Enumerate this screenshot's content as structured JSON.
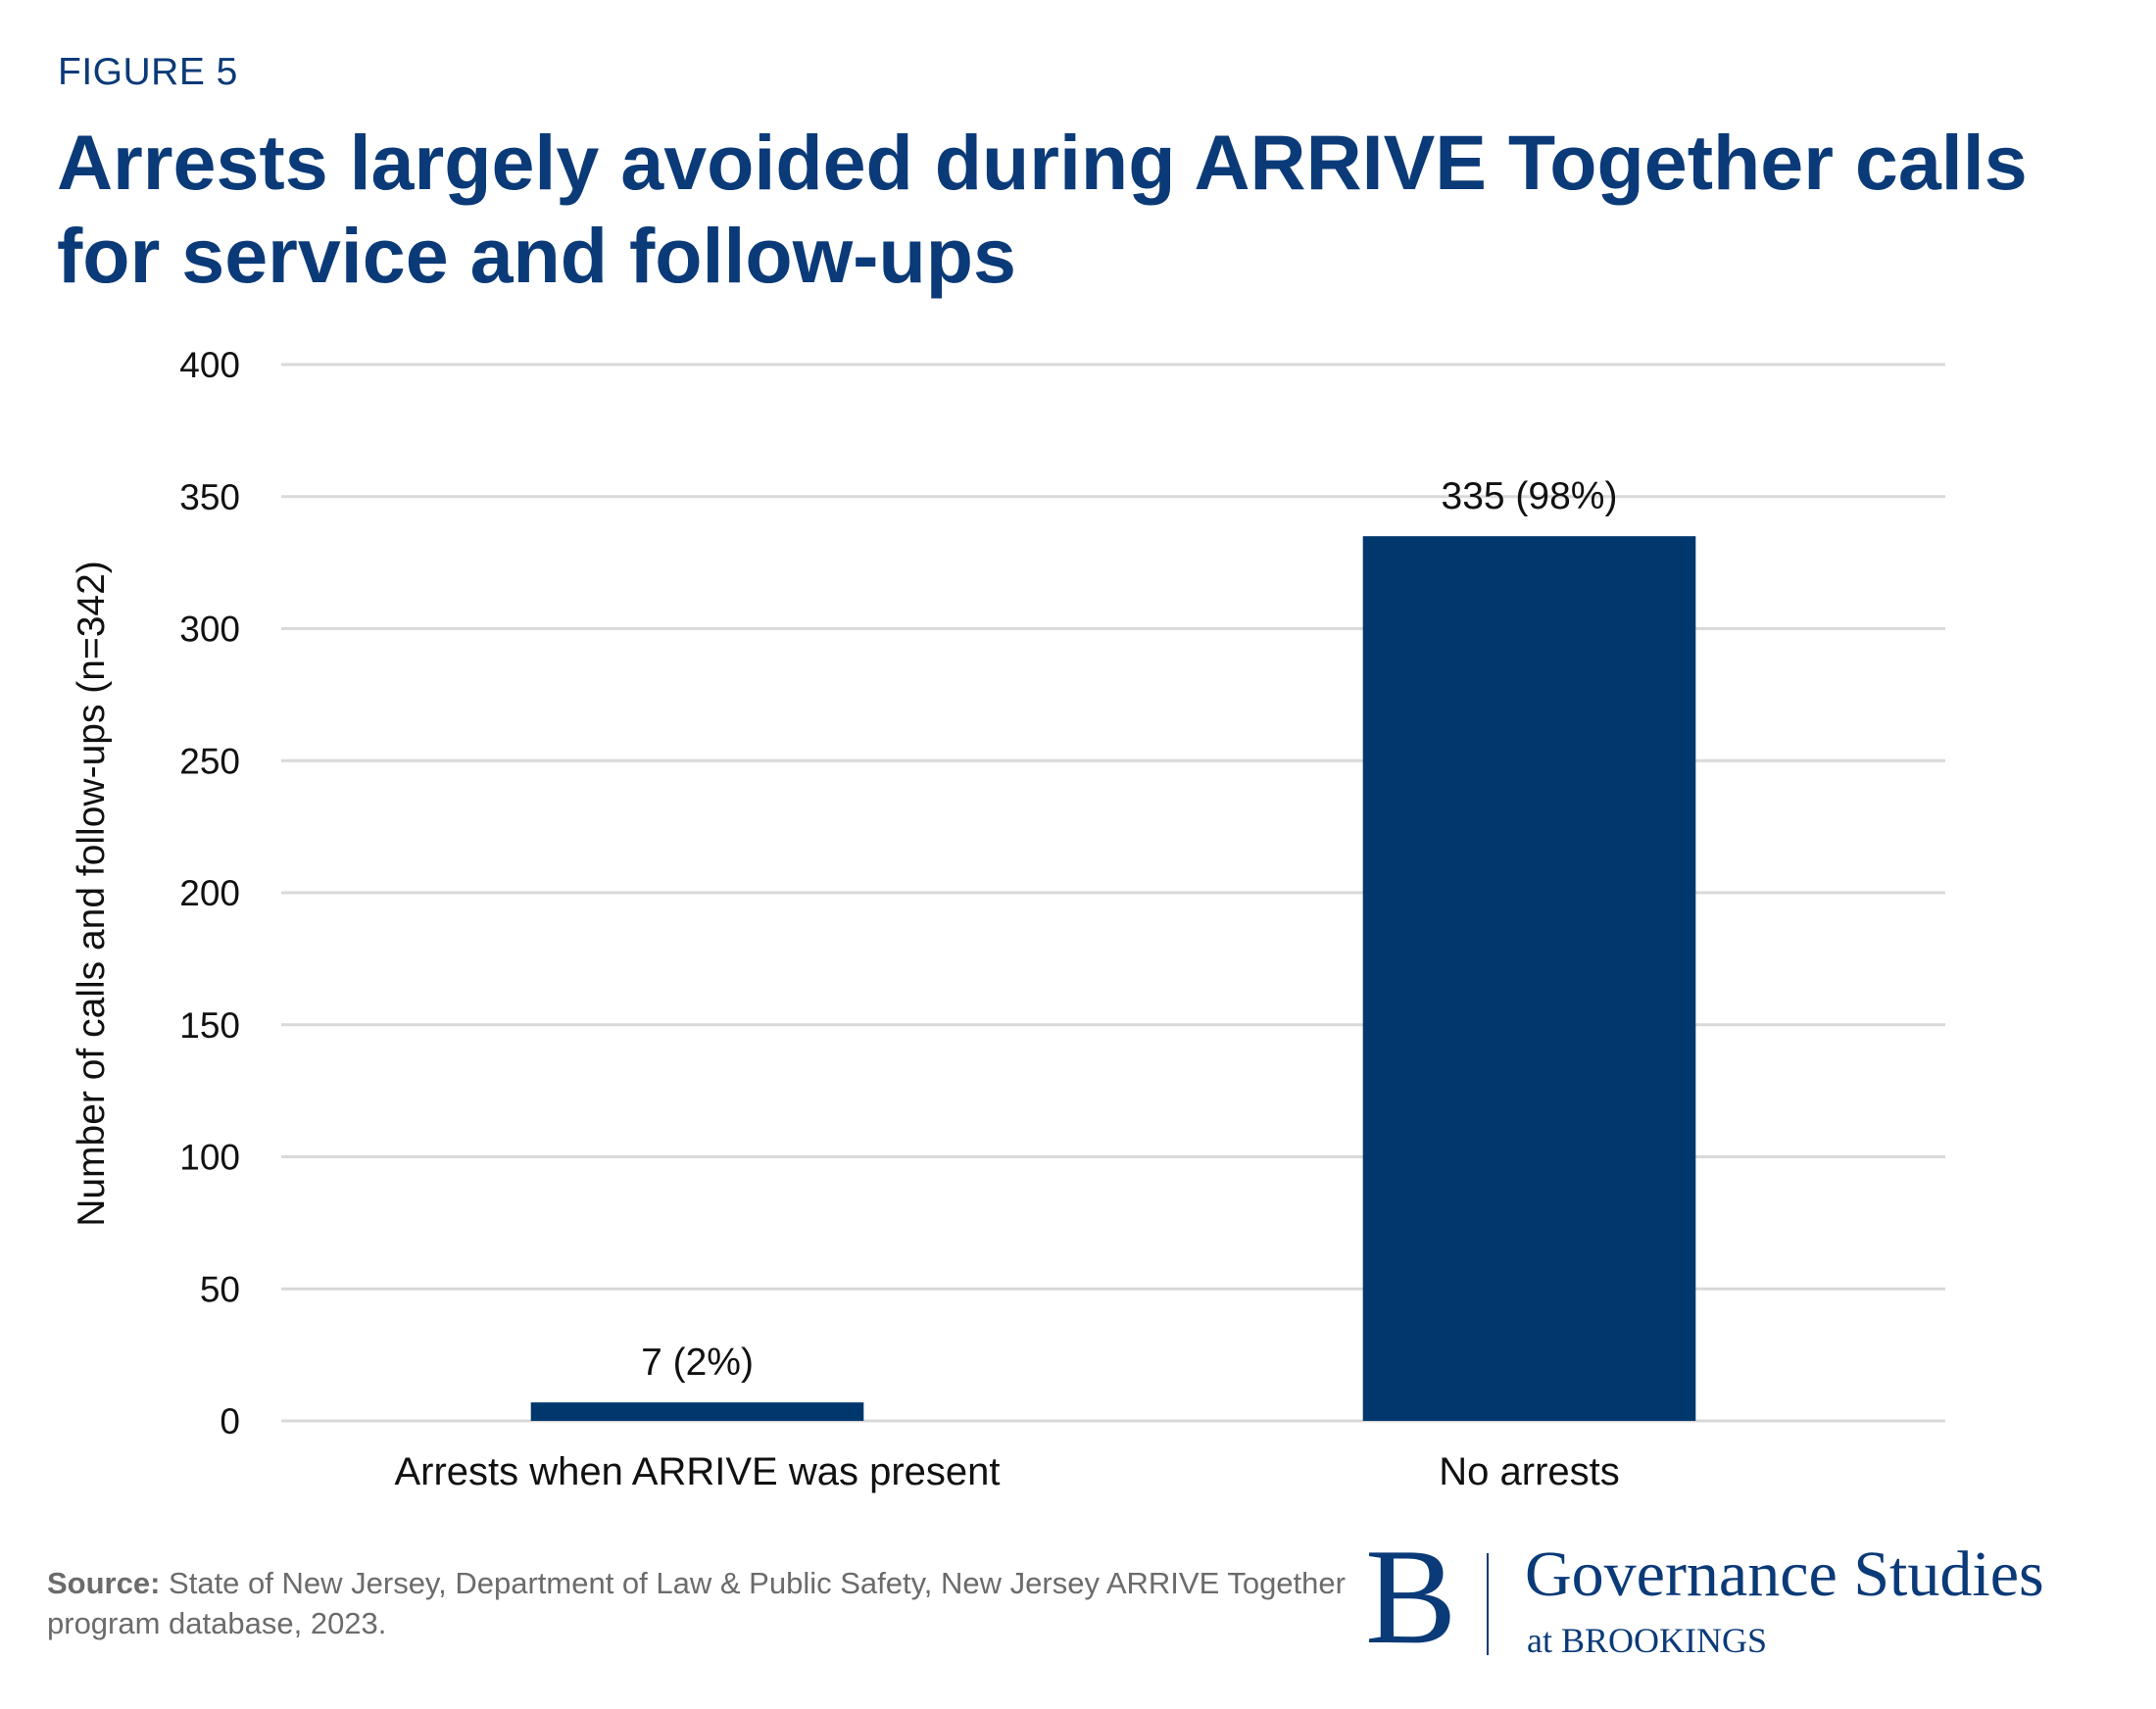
{
  "figure_label": "FIGURE 5",
  "title": "Arrests largely avoided during ARRIVE Together calls for service and follow-ups",
  "source": {
    "label": "Source:",
    "text": " State of New Jersey, Department of Law & Public Safety, New Jersey ARRIVE Together program database, 2023."
  },
  "logo": {
    "mark": "B",
    "name": "Governance Studies",
    "sub": "at BROOKINGS"
  },
  "colors": {
    "brand": "#0b3a78",
    "bar": "#00386d",
    "grid": "#d9d9d9",
    "text": "#111111"
  },
  "chart_data": {
    "type": "bar",
    "categories": [
      "Arrests when ARRIVE was present",
      "No arrests"
    ],
    "values": [
      7,
      335
    ],
    "data_labels": [
      "7 (2%)",
      "335 (98%)"
    ],
    "ylabel": "Number of calls and follow-ups (n=342)",
    "xlabel": "",
    "ylim": [
      0,
      400
    ],
    "yticks": [
      0,
      50,
      100,
      150,
      200,
      250,
      300,
      350,
      400
    ],
    "grid": true,
    "legend": "none"
  }
}
